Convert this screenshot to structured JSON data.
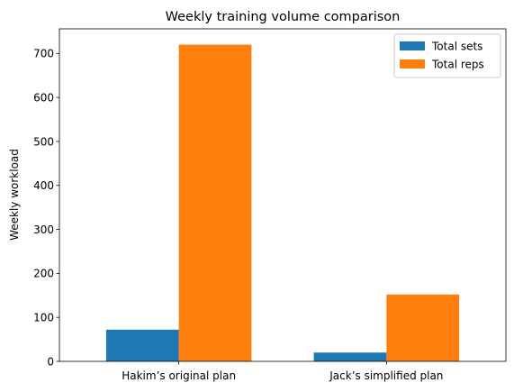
{
  "chart_data": {
    "type": "bar",
    "title": "Weekly training volume comparison",
    "xlabel": "",
    "ylabel": "Weekly workload",
    "categories": [
      "Hakim’s original plan",
      "Jack’s simplified plan"
    ],
    "series": [
      {
        "name": "Total sets",
        "values": [
          72,
          20
        ],
        "color": "#1f77b4"
      },
      {
        "name": "Total reps",
        "values": [
          720,
          152
        ],
        "color": "#ff7f0e"
      }
    ],
    "ylim": [
      0,
      756
    ],
    "yticks": [
      0,
      100,
      200,
      300,
      400,
      500,
      600,
      700
    ],
    "grid": false,
    "legend": "top-right"
  }
}
